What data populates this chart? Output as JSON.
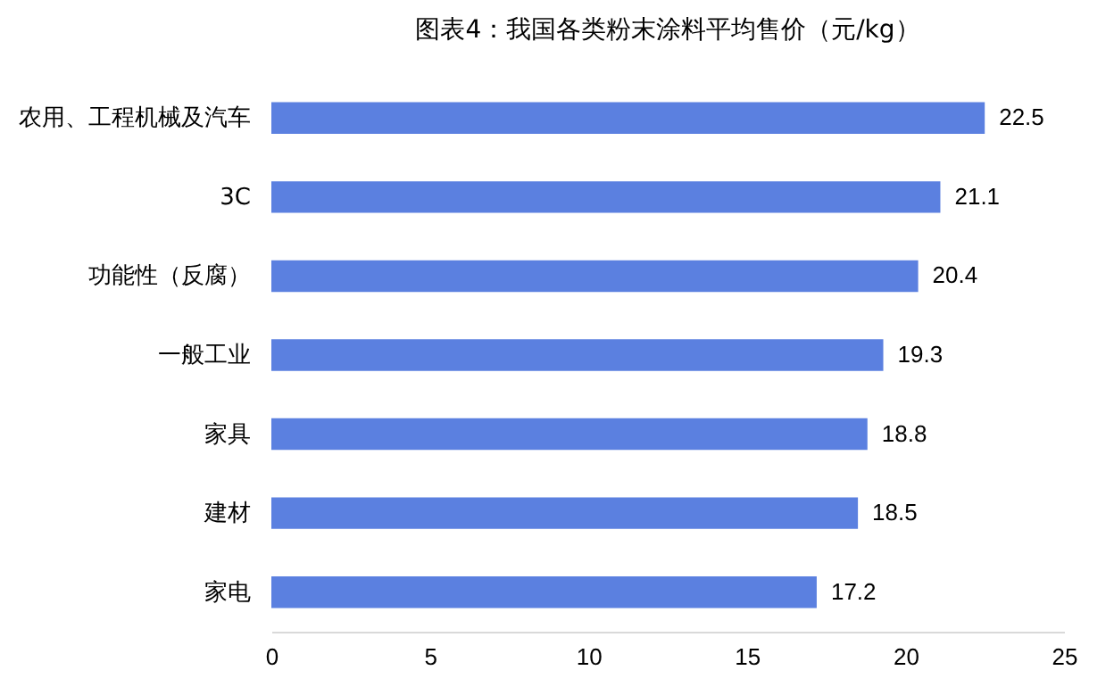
{
  "chart_data": {
    "type": "bar",
    "orientation": "horizontal",
    "title": "图表4：我国各类粉末涂料平均售价（元/kg）",
    "categories": [
      "农用、工程机械及汽车",
      "3C",
      "功能性（反腐）",
      "一般工业",
      "家具",
      "建材",
      "家电"
    ],
    "values": [
      22.5,
      21.1,
      20.4,
      19.3,
      18.8,
      18.5,
      17.2
    ],
    "color": "#5b80e0",
    "data_labels": true,
    "grid": false,
    "xlim": [
      0,
      25
    ],
    "xticks": [
      0,
      5,
      10,
      15,
      20,
      25
    ]
  }
}
